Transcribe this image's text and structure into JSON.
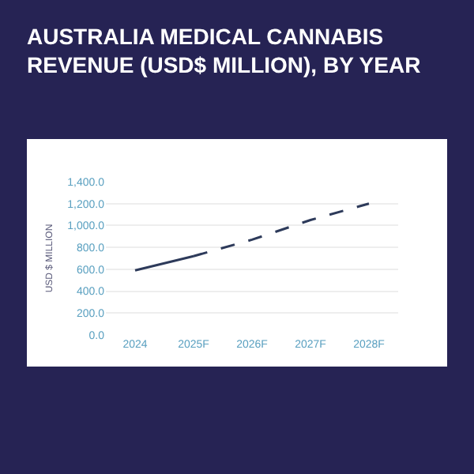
{
  "chart_data": {
    "type": "line",
    "title": "AUSTRALIA MEDICAL CANNABIS\nREVENUE (USD$ MILLION), BY YEAR",
    "ylabel": "USD $ MILLION",
    "categories": [
      "2024",
      "2025F",
      "2026F",
      "2027F",
      "2028F"
    ],
    "series": [
      {
        "color": "#2d3a5a",
        "line_style": "solid",
        "values": [
          590,
          720,
          null,
          null,
          null
        ]
      },
      {
        "color": "#2d3a5a",
        "line_style": "dashed",
        "values": [
          null,
          720,
          870,
          1050,
          1200
        ]
      }
    ],
    "ylim": [
      0,
      1400
    ],
    "yticks": [
      {
        "value": 0,
        "label": "0.0"
      },
      {
        "value": 200,
        "label": "200.0"
      },
      {
        "value": 400,
        "label": "400.0"
      },
      {
        "value": 600,
        "label": "600.0"
      },
      {
        "value": 800,
        "label": "800.0"
      },
      {
        "value": 1000,
        "label": "1,000.0"
      },
      {
        "value": 1200,
        "label": "1,200.0"
      },
      {
        "value": 1400,
        "label": "1,400.0"
      }
    ],
    "grid": "y",
    "marker": "none"
  }
}
